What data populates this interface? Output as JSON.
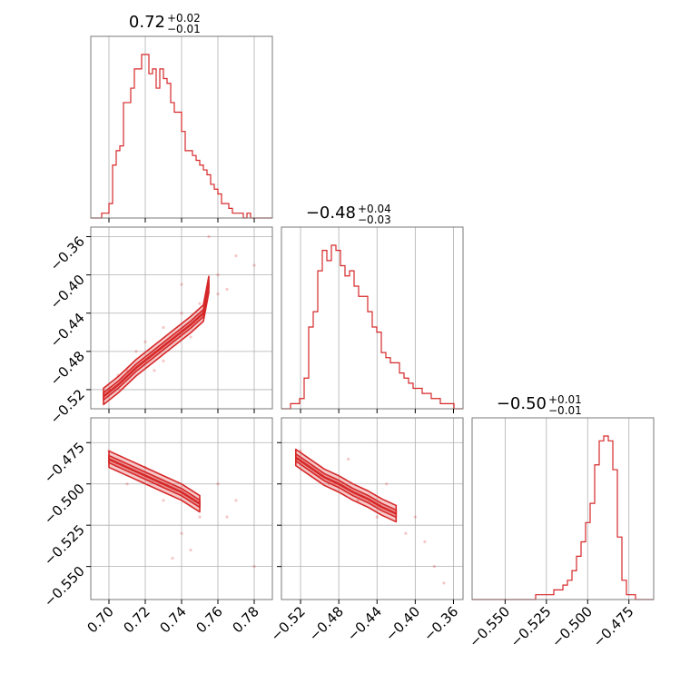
{
  "colors": {
    "line": "#d62728",
    "grid": "#b0b0b0",
    "frame": "#7a7a7a"
  },
  "chart_data": {
    "type": "corner",
    "parameters": [
      {
        "title_value": "0.72",
        "title_upper": "+0.02",
        "title_lower": "−0.01",
        "range": [
          0.69,
          0.79
        ],
        "ticks": [
          0.7,
          0.72,
          0.74,
          0.76,
          0.78
        ],
        "tick_labels": [
          "0.70",
          "0.72",
          "0.74",
          "0.76",
          "0.78"
        ],
        "hist": [
          0,
          0,
          0,
          1,
          1,
          3,
          11,
          14,
          15,
          24,
          24,
          27,
          31,
          31,
          34,
          34,
          30,
          31,
          27,
          31,
          29,
          28,
          24,
          22,
          22,
          18,
          14,
          14,
          13,
          12,
          11,
          10,
          9,
          7,
          6,
          5,
          3,
          3,
          2,
          1,
          1,
          1,
          0,
          1,
          0,
          0,
          0,
          0,
          0,
          0
        ]
      },
      {
        "title_value": "−0.48",
        "title_upper": "+0.04",
        "title_lower": "−0.03",
        "range": [
          -0.54,
          -0.35
        ],
        "ticks": [
          -0.52,
          -0.48,
          -0.44,
          -0.4,
          -0.36
        ],
        "tick_labels": [
          "−0.52",
          "−0.48",
          "−0.44",
          "−0.40",
          "−0.36"
        ],
        "hist": [
          0,
          0,
          1,
          1,
          2,
          6,
          16,
          19,
          27,
          31,
          29,
          32,
          31,
          28,
          26,
          27,
          24,
          22,
          22,
          19,
          16,
          15,
          11,
          10,
          9,
          9,
          7,
          6,
          5,
          4,
          4,
          3,
          3,
          2,
          2,
          1,
          1,
          1,
          0,
          0
        ]
      },
      {
        "title_value": "−0.50",
        "title_upper": "+0.01",
        "title_lower": "−0.01",
        "range": [
          -0.57,
          -0.46
        ],
        "ticks": [
          -0.55,
          -0.525,
          -0.5,
          -0.475
        ],
        "tick_labels": [
          "−0.550",
          "−0.525",
          "−0.500",
          "−0.475"
        ],
        "hist": [
          0,
          0,
          0,
          0,
          0,
          0,
          0,
          0,
          0,
          0,
          0,
          0,
          0,
          0,
          1,
          1,
          1,
          1,
          2,
          2,
          3,
          4,
          6,
          9,
          12,
          16,
          20,
          28,
          33,
          34,
          33,
          27,
          13,
          4,
          1,
          1,
          0,
          0,
          0,
          0
        ]
      }
    ],
    "pairs": [
      {
        "x_param": 0,
        "y_param": 1,
        "ridge": [
          [
            0.697,
            -0.527
          ],
          [
            0.705,
            -0.515
          ],
          [
            0.715,
            -0.497
          ],
          [
            0.725,
            -0.482
          ],
          [
            0.735,
            -0.467
          ],
          [
            0.745,
            -0.452
          ],
          [
            0.752,
            -0.44
          ],
          [
            0.755,
            -0.41
          ]
        ],
        "scatter": [
          [
            0.71,
            -0.5
          ],
          [
            0.72,
            -0.47
          ],
          [
            0.73,
            -0.49
          ],
          [
            0.74,
            -0.44
          ],
          [
            0.75,
            -0.43
          ],
          [
            0.76,
            -0.4
          ],
          [
            0.77,
            -0.38
          ],
          [
            0.755,
            -0.36
          ],
          [
            0.7,
            -0.52
          ],
          [
            0.715,
            -0.48
          ],
          [
            0.73,
            -0.455
          ],
          [
            0.745,
            -0.465
          ],
          [
            0.76,
            -0.42
          ],
          [
            0.74,
            -0.41
          ],
          [
            0.725,
            -0.5
          ],
          [
            0.78,
            -0.39
          ],
          [
            0.765,
            -0.415
          ],
          [
            0.705,
            -0.505
          ]
        ]
      },
      {
        "x_param": 0,
        "y_param": 2,
        "ridge": [
          [
            0.7,
            -0.485
          ],
          [
            0.71,
            -0.49
          ],
          [
            0.72,
            -0.495
          ],
          [
            0.73,
            -0.5
          ],
          [
            0.74,
            -0.505
          ],
          [
            0.75,
            -0.512
          ]
        ],
        "scatter": [
          [
            0.7,
            -0.48
          ],
          [
            0.73,
            -0.51
          ],
          [
            0.75,
            -0.52
          ],
          [
            0.76,
            -0.5
          ],
          [
            0.74,
            -0.53
          ],
          [
            0.72,
            -0.49
          ],
          [
            0.765,
            -0.52
          ],
          [
            0.745,
            -0.54
          ],
          [
            0.71,
            -0.5
          ],
          [
            0.77,
            -0.51
          ],
          [
            0.735,
            -0.545
          ],
          [
            0.78,
            -0.55
          ]
        ]
      },
      {
        "x_param": 1,
        "y_param": 2,
        "ridge": [
          [
            -0.525,
            -0.484
          ],
          [
            -0.51,
            -0.49
          ],
          [
            -0.495,
            -0.496
          ],
          [
            -0.48,
            -0.5
          ],
          [
            -0.465,
            -0.505
          ],
          [
            -0.45,
            -0.509
          ],
          [
            -0.435,
            -0.514
          ],
          [
            -0.42,
            -0.518
          ]
        ],
        "scatter": [
          [
            -0.52,
            -0.48
          ],
          [
            -0.49,
            -0.5
          ],
          [
            -0.46,
            -0.51
          ],
          [
            -0.44,
            -0.52
          ],
          [
            -0.41,
            -0.53
          ],
          [
            -0.4,
            -0.52
          ],
          [
            -0.38,
            -0.55
          ],
          [
            -0.43,
            -0.5
          ],
          [
            -0.47,
            -0.485
          ],
          [
            -0.39,
            -0.535
          ],
          [
            -0.37,
            -0.56
          ],
          [
            -0.5,
            -0.495
          ]
        ]
      }
    ]
  }
}
